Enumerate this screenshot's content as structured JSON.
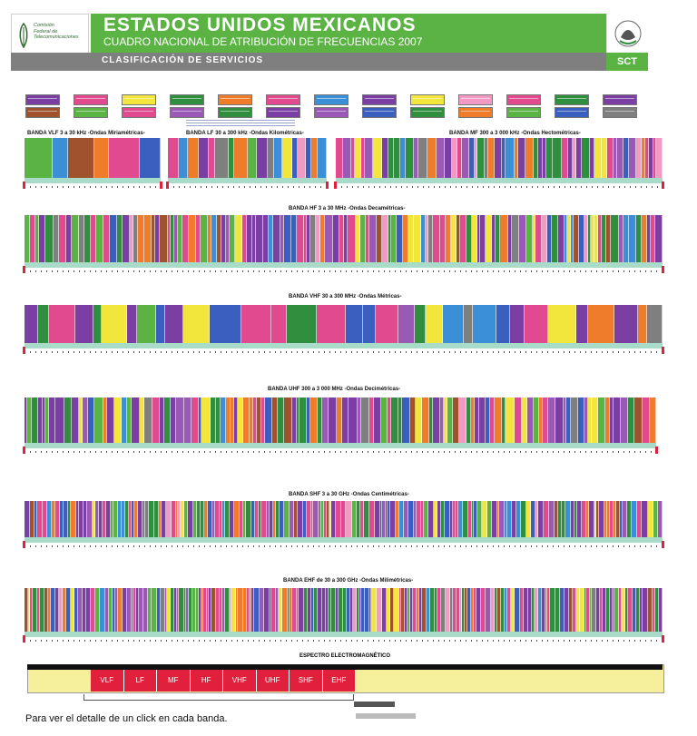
{
  "header": {
    "logo_text": [
      "Comisión",
      "Federal de",
      "Telecomunicaciones"
    ],
    "title": "ESTADOS UNIDOS MEXICANOS",
    "subtitle": "CUADRO NACIONAL DE ATRIBUCIÓN DE FRECUENCIAS 2007",
    "section": "CLASIFICACIÓN DE SERVICIOS",
    "agency": "SCT",
    "seal_icon": "mexico-seal-icon"
  },
  "legend_colors": [
    "#7b3fa3",
    "#e14a8f",
    "#f2e53b",
    "#2f8f3e",
    "#ef7c2a",
    "#e14a8f",
    "#3a8fd6",
    "#7b3fa3",
    "#f2e53b",
    "#f29ac3",
    "#e14a8f",
    "#2f8f3e",
    "#7b3fa3",
    "#a0522d",
    "#5bb344",
    "#e14a8f",
    "#9b59b6",
    "#2f8f3e",
    "#7b3fa3",
    "#9b59b6",
    "#3a5fbf",
    "#2f8f3e",
    "#ef7c2a",
    "#5bb344",
    "#3a5fbf",
    "#7f7f7f"
  ],
  "bands": [
    {
      "title": "BANDA VLF 3 a 30 kHz -Ondas Miriamétricas-"
    },
    {
      "title": "BANDA LF 30 a 300 kHz -Ondas Kilométricas-"
    },
    {
      "title": "BANDA MF 300 a 3 000 kHz -Ondas Hectométricas-"
    },
    {
      "title": "BANDA HF 3 a 30 MHz -Ondas Decamétricas-"
    },
    {
      "title": "BANDA VHF 30 a 300 MHz -Ondas Métricas-"
    },
    {
      "title": "BANDA UHF 300 a 3 000 MHz -Ondas Decimétricas-"
    },
    {
      "title": "BANDA SHF 3 a 30 GHz -Ondas Centimétricas-"
    },
    {
      "title": "BANDA EHF de 30 a 300 GHz -Ondas Milimétricas-"
    }
  ],
  "spectrum": {
    "title": "ESPECTRO ELECTROMAGNÉTICO",
    "cells": [
      "VLF",
      "LF",
      "MF",
      "HF",
      "VHF",
      "UHF",
      "SHF",
      "EHF"
    ]
  },
  "footer_note": "Para ver el detalle de un click en cada banda."
}
